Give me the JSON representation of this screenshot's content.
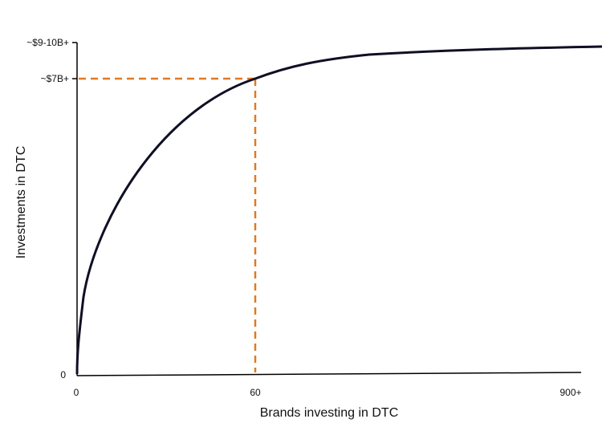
{
  "chart_data": {
    "type": "line",
    "title": "",
    "xlabel": "Brands investing in DTC",
    "ylabel": "Investments in DTC",
    "x_ticks": [
      "0",
      "60",
      "900+"
    ],
    "y_ticks": [
      "0",
      "~$7B+",
      "~$9-10B+"
    ],
    "grid": false,
    "series": [
      {
        "x_ticks_position": [
          0,
          1,
          2
        ],
        "curve_shape": "saturating-concave"
      }
    ],
    "highlight": {
      "x_label": "60",
      "y_label": "~$7B+",
      "style": "dashed"
    },
    "colors": {
      "curve": "#0f0f24",
      "highlight": "#e07a1f",
      "axis": "#000000"
    }
  }
}
